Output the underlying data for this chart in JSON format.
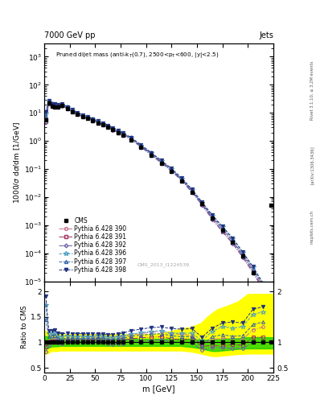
{
  "header_left": "7000 GeV pp",
  "header_right": "Jets",
  "watermark": "CMS_2013_I1224539",
  "right_label1": "Rivet 3.1.10, ≥ 3.2M events",
  "right_label2": "[arXiv:1306.3436]",
  "right_label3": "mcplots.cern.ch",
  "cms_x": [
    1.5,
    4.5,
    7.5,
    10.5,
    13.5,
    17.5,
    22.5,
    27.5,
    32.5,
    37.5,
    42.5,
    47.5,
    52.5,
    57.5,
    62.5,
    67.5,
    72.5,
    77.5,
    85.0,
    95.0,
    105.0,
    115.0,
    125.0,
    135.0,
    145.0,
    155.0,
    165.0,
    175.0,
    185.0,
    195.0,
    205.0,
    215.0,
    222.5
  ],
  "cms_y": [
    5.5,
    22.0,
    17.5,
    16.5,
    16.5,
    18.0,
    14.0,
    11.0,
    8.8,
    7.2,
    6.2,
    5.3,
    4.4,
    3.7,
    3.1,
    2.5,
    2.0,
    1.6,
    1.1,
    0.58,
    0.3,
    0.155,
    0.082,
    0.038,
    0.015,
    0.006,
    0.0018,
    0.00065,
    0.00025,
    8e-05,
    2e-05,
    5e-06,
    0.005
  ],
  "py390_x": [
    1.5,
    4.5,
    7.5,
    10.5,
    13.5,
    17.5,
    22.5,
    27.5,
    32.5,
    37.5,
    42.5,
    47.5,
    52.5,
    57.5,
    62.5,
    67.5,
    72.5,
    77.5,
    85.0,
    95.0,
    105.0,
    115.0,
    125.0,
    135.0,
    145.0,
    155.0,
    165.0,
    175.0,
    185.0,
    195.0,
    205.0,
    215.0,
    222.5
  ],
  "py390_y": [
    5.5,
    22.5,
    18.5,
    17.5,
    17.2,
    18.5,
    14.8,
    11.8,
    9.5,
    7.7,
    6.7,
    5.7,
    4.8,
    4.0,
    3.3,
    2.7,
    2.2,
    1.78,
    1.26,
    0.68,
    0.36,
    0.187,
    0.096,
    0.044,
    0.017,
    0.0058,
    0.0019,
    0.0007,
    0.00027,
    8.5e-05,
    2.5e-05,
    6.5e-06,
    1e-06
  ],
  "py391_x": [
    1.5,
    4.5,
    7.5,
    10.5,
    13.5,
    17.5,
    22.5,
    27.5,
    32.5,
    37.5,
    42.5,
    47.5,
    52.5,
    57.5,
    62.5,
    67.5,
    72.5,
    77.5,
    85.0,
    95.0,
    105.0,
    115.0,
    125.0,
    135.0,
    145.0,
    155.0,
    165.0,
    175.0,
    185.0,
    195.0,
    205.0,
    215.0,
    222.5
  ],
  "py391_y": [
    5.0,
    22.0,
    18.0,
    17.0,
    16.8,
    18.0,
    14.5,
    11.5,
    9.0,
    7.4,
    6.4,
    5.5,
    4.6,
    3.8,
    3.2,
    2.55,
    2.05,
    1.66,
    1.18,
    0.63,
    0.33,
    0.172,
    0.088,
    0.04,
    0.016,
    0.0055,
    0.0017,
    0.0006,
    0.00024,
    7.5e-05,
    2.2e-05,
    5.5e-06,
    9e-07
  ],
  "py392_x": [
    1.5,
    4.5,
    7.5,
    10.5,
    13.5,
    17.5,
    22.5,
    27.5,
    32.5,
    37.5,
    42.5,
    47.5,
    52.5,
    57.5,
    62.5,
    67.5,
    72.5,
    77.5,
    85.0,
    95.0,
    105.0,
    115.0,
    125.0,
    135.0,
    145.0,
    155.0,
    165.0,
    175.0,
    185.0,
    195.0,
    205.0,
    215.0,
    222.5
  ],
  "py392_y": [
    4.5,
    21.0,
    17.5,
    16.5,
    16.3,
    17.5,
    14.2,
    11.2,
    8.8,
    7.2,
    6.2,
    5.3,
    4.5,
    3.7,
    3.0,
    2.4,
    1.95,
    1.57,
    1.12,
    0.6,
    0.31,
    0.162,
    0.083,
    0.038,
    0.0148,
    0.0051,
    0.0016,
    0.00058,
    0.00022,
    7e-05,
    2e-05,
    5e-06,
    8e-07
  ],
  "py396_x": [
    1.5,
    4.5,
    7.5,
    10.5,
    13.5,
    17.5,
    22.5,
    27.5,
    32.5,
    37.5,
    42.5,
    47.5,
    52.5,
    57.5,
    62.5,
    67.5,
    72.5,
    77.5,
    85.0,
    95.0,
    105.0,
    115.0,
    125.0,
    135.0,
    145.0,
    155.0,
    165.0,
    175.0,
    185.0,
    195.0,
    205.0,
    215.0,
    222.5
  ],
  "py396_y": [
    9.5,
    26.0,
    20.5,
    19.5,
    18.5,
    20.0,
    15.8,
    12.3,
    9.8,
    8.0,
    6.9,
    5.9,
    4.95,
    4.15,
    3.4,
    2.75,
    2.22,
    1.8,
    1.28,
    0.69,
    0.365,
    0.19,
    0.097,
    0.045,
    0.0177,
    0.0062,
    0.0022,
    0.00085,
    0.00032,
    0.000105,
    3.1e-05,
    8e-06,
    1.3e-06
  ],
  "py397_x": [
    1.5,
    4.5,
    7.5,
    10.5,
    13.5,
    17.5,
    22.5,
    27.5,
    32.5,
    37.5,
    42.5,
    47.5,
    52.5,
    57.5,
    62.5,
    67.5,
    72.5,
    77.5,
    85.0,
    95.0,
    105.0,
    115.0,
    125.0,
    135.0,
    145.0,
    155.0,
    165.0,
    175.0,
    185.0,
    195.0,
    205.0,
    215.0,
    222.5
  ],
  "py397_y": [
    8.0,
    24.5,
    19.8,
    18.8,
    17.8,
    19.0,
    15.3,
    11.9,
    9.4,
    7.7,
    6.65,
    5.67,
    4.78,
    3.98,
    3.28,
    2.65,
    2.14,
    1.73,
    1.23,
    0.66,
    0.348,
    0.181,
    0.093,
    0.042,
    0.0167,
    0.0057,
    0.002,
    0.00075,
    0.00028,
    9e-05,
    2.7e-05,
    7e-06,
    1.1e-06
  ],
  "py398_x": [
    1.5,
    4.5,
    7.5,
    10.5,
    13.5,
    17.5,
    22.5,
    27.5,
    32.5,
    37.5,
    42.5,
    47.5,
    52.5,
    57.5,
    62.5,
    67.5,
    72.5,
    77.5,
    85.0,
    95.0,
    105.0,
    115.0,
    125.0,
    135.0,
    145.0,
    155.0,
    165.0,
    175.0,
    185.0,
    195.0,
    205.0,
    215.0,
    222.5
  ],
  "py398_y": [
    10.5,
    27.0,
    21.5,
    20.5,
    19.5,
    21.0,
    16.5,
    12.9,
    10.3,
    8.4,
    7.2,
    6.15,
    5.15,
    4.3,
    3.55,
    2.87,
    2.33,
    1.89,
    1.35,
    0.73,
    0.386,
    0.201,
    0.104,
    0.048,
    0.019,
    0.0066,
    0.0023,
    0.0009,
    0.00035,
    0.00011,
    3.3e-05,
    8.5e-06,
    1.4e-06
  ],
  "ratio390_x": [
    1.5,
    4.5,
    7.5,
    10.5,
    13.5,
    17.5,
    22.5,
    27.5,
    32.5,
    37.5,
    42.5,
    47.5,
    52.5,
    57.5,
    62.5,
    67.5,
    72.5,
    77.5,
    85.0,
    95.0,
    105.0,
    115.0,
    125.0,
    135.0,
    145.0,
    155.0,
    165.0,
    175.0,
    185.0,
    195.0,
    205.0,
    215.0
  ],
  "ratio390_y": [
    1.0,
    1.02,
    1.06,
    1.06,
    1.04,
    1.03,
    1.06,
    1.07,
    1.08,
    1.07,
    1.08,
    1.08,
    1.09,
    1.08,
    1.06,
    1.08,
    1.1,
    1.11,
    1.15,
    1.17,
    1.2,
    1.21,
    1.17,
    1.16,
    1.13,
    0.97,
    1.06,
    1.08,
    1.08,
    1.06,
    1.25,
    1.3
  ],
  "ratio391_x": [
    1.5,
    4.5,
    7.5,
    10.5,
    13.5,
    17.5,
    22.5,
    27.5,
    32.5,
    37.5,
    42.5,
    47.5,
    52.5,
    57.5,
    62.5,
    67.5,
    72.5,
    77.5,
    85.0,
    95.0,
    105.0,
    115.0,
    125.0,
    135.0,
    145.0,
    155.0,
    165.0,
    175.0,
    185.0,
    195.0,
    205.0,
    215.0
  ],
  "ratio391_y": [
    0.91,
    1.0,
    1.03,
    1.03,
    1.02,
    1.0,
    1.04,
    1.05,
    1.02,
    1.03,
    1.03,
    1.04,
    1.05,
    1.03,
    1.03,
    1.02,
    1.03,
    1.04,
    1.07,
    1.09,
    1.1,
    1.11,
    1.07,
    1.05,
    1.07,
    0.92,
    0.94,
    0.92,
    0.96,
    0.94,
    1.1,
    1.1
  ],
  "ratio392_x": [
    1.5,
    4.5,
    7.5,
    10.5,
    13.5,
    17.5,
    22.5,
    27.5,
    32.5,
    37.5,
    42.5,
    47.5,
    52.5,
    57.5,
    62.5,
    67.5,
    72.5,
    77.5,
    85.0,
    95.0,
    105.0,
    115.0,
    125.0,
    135.0,
    145.0,
    155.0,
    165.0,
    175.0,
    185.0,
    195.0,
    205.0,
    215.0
  ],
  "ratio392_y": [
    0.82,
    0.95,
    1.0,
    1.0,
    0.99,
    0.97,
    1.01,
    1.02,
    1.0,
    1.0,
    1.0,
    1.0,
    1.02,
    1.0,
    0.97,
    0.96,
    0.98,
    0.98,
    1.02,
    1.03,
    1.03,
    1.05,
    1.01,
    1.0,
    0.99,
    0.85,
    0.89,
    0.89,
    0.88,
    0.88,
    1.0,
    1.0
  ],
  "ratio396_x": [
    1.5,
    4.5,
    7.5,
    10.5,
    13.5,
    17.5,
    22.5,
    27.5,
    32.5,
    37.5,
    42.5,
    47.5,
    52.5,
    57.5,
    62.5,
    67.5,
    72.5,
    77.5,
    85.0,
    95.0,
    105.0,
    115.0,
    125.0,
    135.0,
    145.0,
    155.0,
    165.0,
    175.0,
    185.0,
    195.0,
    205.0,
    215.0
  ],
  "ratio396_y": [
    1.73,
    1.18,
    1.17,
    1.18,
    1.12,
    1.11,
    1.13,
    1.12,
    1.11,
    1.11,
    1.11,
    1.11,
    1.13,
    1.12,
    1.1,
    1.1,
    1.11,
    1.13,
    1.16,
    1.19,
    1.22,
    1.23,
    1.18,
    1.18,
    1.18,
    1.03,
    1.22,
    1.31,
    1.28,
    1.31,
    1.55,
    1.6
  ],
  "ratio397_x": [
    1.5,
    4.5,
    7.5,
    10.5,
    13.5,
    17.5,
    22.5,
    27.5,
    32.5,
    37.5,
    42.5,
    47.5,
    52.5,
    57.5,
    62.5,
    67.5,
    72.5,
    77.5,
    85.0,
    95.0,
    105.0,
    115.0,
    125.0,
    135.0,
    145.0,
    155.0,
    165.0,
    175.0,
    185.0,
    195.0,
    205.0,
    215.0
  ],
  "ratio397_y": [
    1.45,
    1.11,
    1.13,
    1.14,
    1.08,
    1.06,
    1.09,
    1.08,
    1.07,
    1.07,
    1.07,
    1.07,
    1.09,
    1.08,
    1.06,
    1.06,
    1.07,
    1.08,
    1.12,
    1.14,
    1.16,
    1.17,
    1.13,
    1.11,
    1.11,
    0.95,
    1.11,
    1.15,
    1.12,
    1.13,
    1.35,
    1.4
  ],
  "ratio398_x": [
    1.5,
    4.5,
    7.5,
    10.5,
    13.5,
    17.5,
    22.5,
    27.5,
    32.5,
    37.5,
    42.5,
    47.5,
    52.5,
    57.5,
    62.5,
    67.5,
    72.5,
    77.5,
    85.0,
    95.0,
    105.0,
    115.0,
    125.0,
    135.0,
    145.0,
    155.0,
    165.0,
    175.0,
    185.0,
    195.0,
    205.0,
    215.0
  ],
  "ratio398_y": [
    1.91,
    1.23,
    1.23,
    1.24,
    1.18,
    1.17,
    1.18,
    1.17,
    1.17,
    1.17,
    1.16,
    1.16,
    1.17,
    1.16,
    1.15,
    1.15,
    1.17,
    1.18,
    1.23,
    1.26,
    1.29,
    1.3,
    1.27,
    1.26,
    1.27,
    1.1,
    1.28,
    1.38,
    1.4,
    1.38,
    1.65,
    1.7
  ],
  "cms_ratio_x": [
    1.5,
    4.5,
    7.5,
    10.5,
    13.5,
    17.5,
    22.5,
    27.5,
    32.5,
    37.5,
    42.5,
    47.5,
    52.5,
    57.5,
    62.5,
    67.5,
    72.5,
    77.5,
    85.0,
    95.0,
    105.0,
    115.0,
    125.0,
    135.0,
    145.0,
    155.0,
    165.0,
    175.0,
    185.0,
    195.0,
    205.0,
    215.0,
    222.5
  ],
  "cms_ratio_y": [
    1.0,
    1.0,
    1.0,
    1.0,
    1.0,
    1.0,
    1.0,
    1.0,
    1.0,
    1.0,
    1.0,
    1.0,
    1.0,
    1.0,
    1.0,
    1.0,
    1.0,
    1.0,
    1.0,
    1.0,
    1.0,
    1.0,
    1.0,
    1.0,
    1.0,
    1.0,
    1.0,
    1.0,
    1.0,
    1.0,
    1.0,
    1.0,
    1.0
  ],
  "green_band_x": [
    0,
    3,
    6,
    9,
    12,
    16,
    21,
    26,
    31,
    36,
    41,
    46,
    51,
    56,
    61,
    66,
    71,
    76,
    84,
    94,
    104,
    114,
    124,
    134,
    144,
    154,
    160,
    165,
    170,
    180,
    190,
    200,
    225
  ],
  "green_band_lo": [
    0.88,
    0.88,
    0.91,
    0.92,
    0.92,
    0.93,
    0.93,
    0.93,
    0.93,
    0.93,
    0.93,
    0.93,
    0.93,
    0.93,
    0.93,
    0.93,
    0.93,
    0.93,
    0.93,
    0.93,
    0.93,
    0.93,
    0.93,
    0.93,
    0.91,
    0.88,
    0.85,
    0.83,
    0.83,
    0.85,
    0.87,
    0.88,
    0.88
  ],
  "green_band_hi": [
    1.12,
    1.12,
    1.09,
    1.08,
    1.08,
    1.07,
    1.07,
    1.07,
    1.07,
    1.07,
    1.07,
    1.07,
    1.07,
    1.07,
    1.07,
    1.07,
    1.07,
    1.07,
    1.07,
    1.07,
    1.07,
    1.07,
    1.07,
    1.07,
    1.07,
    1.05,
    1.05,
    1.05,
    1.06,
    1.07,
    1.08,
    1.1,
    1.1
  ],
  "yellow_band_x": [
    0,
    3,
    6,
    9,
    12,
    16,
    21,
    26,
    31,
    36,
    41,
    46,
    51,
    56,
    61,
    66,
    71,
    76,
    84,
    94,
    104,
    114,
    124,
    134,
    144,
    154,
    160,
    165,
    170,
    180,
    190,
    200,
    225
  ],
  "yellow_band_lo": [
    0.78,
    0.78,
    0.82,
    0.83,
    0.83,
    0.84,
    0.84,
    0.84,
    0.84,
    0.84,
    0.84,
    0.84,
    0.84,
    0.84,
    0.84,
    0.84,
    0.84,
    0.84,
    0.84,
    0.84,
    0.84,
    0.84,
    0.84,
    0.84,
    0.82,
    0.78,
    0.75,
    0.73,
    0.73,
    0.75,
    0.77,
    0.78,
    0.78
  ],
  "yellow_band_hi": [
    1.22,
    1.22,
    1.18,
    1.17,
    1.17,
    1.16,
    1.16,
    1.16,
    1.16,
    1.16,
    1.16,
    1.16,
    1.16,
    1.16,
    1.16,
    1.16,
    1.16,
    1.16,
    1.16,
    1.16,
    1.16,
    1.18,
    1.22,
    1.27,
    1.3,
    1.38,
    1.5,
    1.58,
    1.65,
    1.72,
    1.8,
    1.95,
    1.95
  ],
  "color390": "#c47090",
  "color391": "#a03060",
  "color392": "#7060a8",
  "color396": "#50a0c0",
  "color397": "#3060a8",
  "color398": "#203080",
  "xlim": [
    0,
    225
  ],
  "ylim_main": [
    1e-05,
    3000
  ],
  "ylim_ratio": [
    0.4,
    2.2
  ]
}
